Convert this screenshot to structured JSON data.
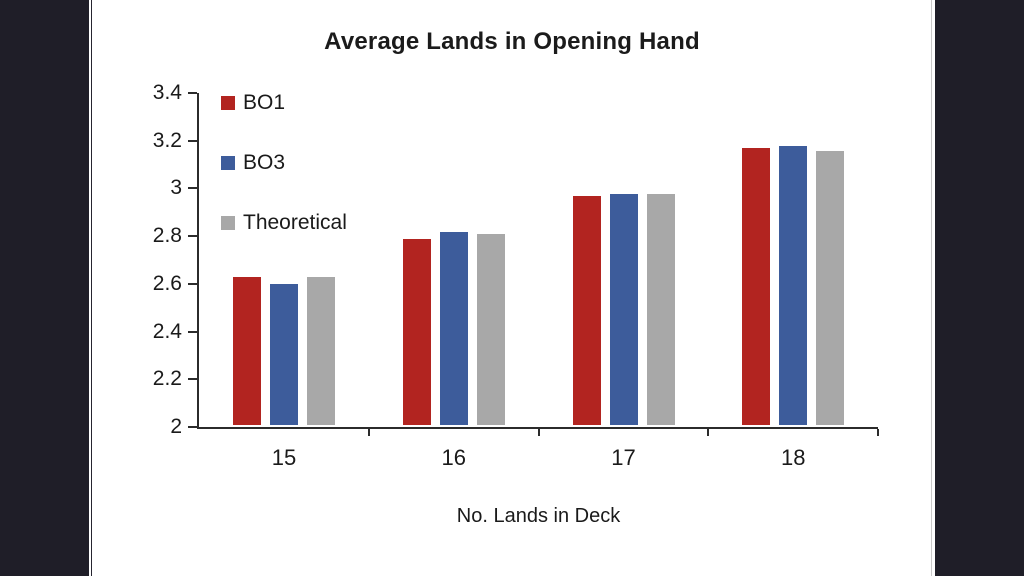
{
  "page": {
    "letterbox_color": "#1f1e28",
    "background_color": "#ffffff"
  },
  "chart_data": {
    "type": "bar",
    "title": "Average Lands in Opening Hand",
    "xlabel": "No. Lands in Deck",
    "ylabel": "",
    "categories": [
      "15",
      "16",
      "17",
      "18"
    ],
    "series": [
      {
        "name": "BO1",
        "color": "#b22420",
        "values": [
          2.62,
          2.78,
          2.96,
          3.16
        ]
      },
      {
        "name": "BO3",
        "color": "#3d5c9b",
        "values": [
          2.59,
          2.81,
          2.97,
          3.17
        ]
      },
      {
        "name": "Theoretical",
        "color": "#a8a8a8",
        "values": [
          2.62,
          2.8,
          2.97,
          3.15
        ]
      }
    ],
    "ylim": [
      2,
      3.4
    ],
    "ytick_step": 0.2,
    "yticks": [
      "3.4",
      "3.2",
      "3",
      "2.8",
      "2.6",
      "2.4",
      "2.2",
      "2"
    ],
    "grid": false,
    "legend_position": "top-left-inside",
    "axis_color": "#2b2b2b",
    "text_color": "#1a1a1a"
  }
}
